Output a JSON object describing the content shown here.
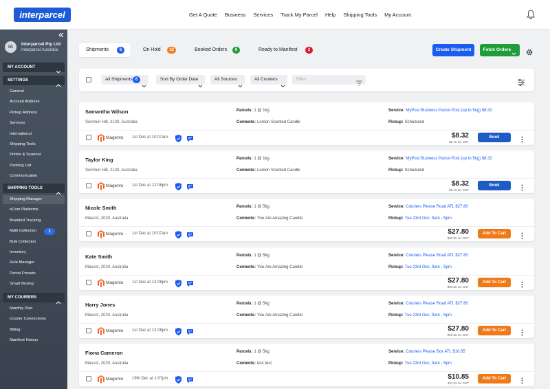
{
  "header": {
    "logo": "interparcel",
    "nav": [
      "Get A Quote",
      "Business",
      "Services",
      "Track My Parcel",
      "Help",
      "Shipping Tools",
      "My Account"
    ]
  },
  "sidebar": {
    "initials": "IA",
    "account": "Interparcel Pty Ltd",
    "subaccount": "Interparcel Australia",
    "sections": [
      {
        "title": "MY ACCOUNT",
        "items": []
      },
      {
        "title": "SETTINGS",
        "items": [
          {
            "label": "General"
          },
          {
            "label": "Account Address"
          },
          {
            "label": "Pickup Address"
          },
          {
            "label": "Services"
          },
          {
            "label": "International"
          },
          {
            "label": "Shipping Tools"
          },
          {
            "label": "Printer & Scanner"
          },
          {
            "label": "Packing List"
          },
          {
            "label": "Communication"
          }
        ]
      },
      {
        "title": "SHIPPING TOOLS",
        "items": [
          {
            "label": "Shipping Manager",
            "active": true
          },
          {
            "label": "eCom Platforms"
          },
          {
            "label": "Branded Tracking"
          },
          {
            "label": "Multi Collection",
            "badge": 1
          },
          {
            "label": "Bulk Collection"
          },
          {
            "label": "Inventory"
          },
          {
            "label": "Rule Manager"
          },
          {
            "label": "Parcel Presets"
          },
          {
            "label": "Smart Boxing"
          }
        ]
      },
      {
        "title": "MY COURIERS",
        "items": [
          {
            "label": "Monthly Plan"
          },
          {
            "label": "Courier Connections"
          },
          {
            "label": "Billing"
          },
          {
            "label": "Manifest History"
          }
        ]
      }
    ]
  },
  "tabs": [
    {
      "label": "Shipments",
      "count": 6,
      "color": "#1a5cf0",
      "active": true
    },
    {
      "label": "On Hold",
      "count": 32,
      "color": "#f07a1a"
    },
    {
      "label": "Booked Orders",
      "count": 0,
      "color": "#1f9d3a"
    },
    {
      "label": "Ready to Manifest",
      "count": 2,
      "color": "#d91a2a"
    }
  ],
  "actions": {
    "create": "Create Shipment",
    "fetch": "Fetch Orders"
  },
  "filters": {
    "shipments": {
      "label": "All Shipments",
      "count": 6
    },
    "sort": "Sort By Order Date",
    "sources": "All Sources",
    "couriers": "All Couriers",
    "placeholder": "Filter"
  },
  "labels": {
    "parcels": "Parcels:",
    "contents": "Contents:",
    "service": "Service:",
    "pickup": "Pickup:"
  },
  "orders": [
    {
      "name": "Samantha Wilson",
      "address": "Summer Hill, 2130, Australia",
      "parcels": "1 @ 1kg",
      "contents": "Lemon Scented Candle",
      "service": "MyPost Business Parcel Post (up to 5kg) $8.32",
      "pickup": "Scheduled",
      "source": "Magento",
      "date": "1st Dec at 10:07am",
      "price": "$8.32",
      "gst": "$9.15 inc GST",
      "button": "Book"
    },
    {
      "name": "Taylor King",
      "address": "Summer Hill, 2130, Australia",
      "parcels": "1 @ 1kg",
      "contents": "Lemon Scented Candle",
      "service": "MyPost Business Parcel Post (up to 5kg) $8.32",
      "pickup": "Scheduled",
      "source": "Magento",
      "date": "1st Dec at 12:06pm",
      "price": "$8.32",
      "gst": "$9.15 inc GST",
      "button": "Book"
    },
    {
      "name": "Nicole Smith",
      "address": "Mascot, 2020, Australia",
      "parcels": "1 @ 5kg",
      "contents": "You Are Amazing Candle",
      "service": "Couriers Please Road ATL $27.80",
      "pickup": "Tue 23rd Dec, 9am - 5pm",
      "source": "Magento",
      "date": "1st Dec at 10:07am",
      "price": "$27.80",
      "gst": "$30.58 inc GST",
      "button": "Add To Cart"
    },
    {
      "name": "Kate Smith",
      "address": "Mascot, 2020, Australia",
      "parcels": "1 @ 5kg",
      "contents": "You Are Amazing Candle",
      "service": "Couriers Please Road ATL $27.80",
      "pickup": "Tue 23rd Dec, 9am - 5pm",
      "source": "Magento",
      "date": "1st Dec at 12:06pm",
      "price": "$27.80",
      "gst": "$30.58 inc GST",
      "button": "Add To Cart"
    },
    {
      "name": "Harry Jones",
      "address": "Mascot, 2020, Australia",
      "parcels": "1 @ 5kg",
      "contents": "You Are Amazing Candle",
      "service": "Couriers Please Road ATL $27.80",
      "pickup": "Tue 23rd Dec, 9am - 5pm",
      "source": "Magento",
      "date": "1st Dec at 12:06pm",
      "price": "$27.80",
      "gst": "$30.58 inc GST",
      "button": "Add To Cart"
    },
    {
      "name": "Fiona Cameron",
      "address": "Mascot, 2020, Australia",
      "parcels": "1 @ 5kg",
      "contents": "test test",
      "service": "Couriers Please Box ATL $10.85",
      "pickup": "Tue 23rd Dec, 9am - 5pm",
      "source": "Magento",
      "date": "19th Dec at 1:07pm",
      "price": "$10.85",
      "gst": "$11.93 inc GST",
      "button": "Add To Cart"
    }
  ]
}
